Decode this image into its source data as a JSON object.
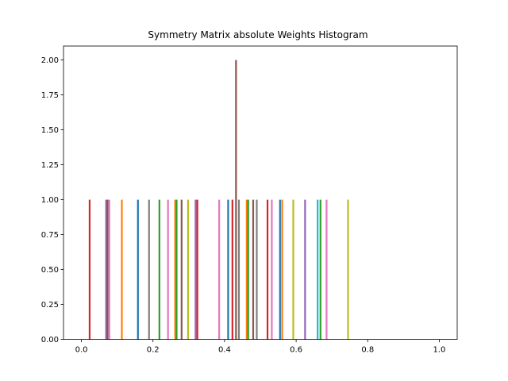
{
  "chart_data": {
    "type": "bar",
    "title": "Symmetry Matrix absolute Weights Histogram",
    "xlabel": "",
    "ylabel": "",
    "xlim": [
      -0.05,
      1.05
    ],
    "ylim": [
      0,
      2.1
    ],
    "x_ticks": [
      "0.0",
      "0.2",
      "0.4",
      "0.6",
      "0.8",
      "1.0"
    ],
    "x_tick_values": [
      0.0,
      0.2,
      0.4,
      0.6,
      0.8,
      1.0
    ],
    "y_ticks": [
      "0.00",
      "0.25",
      "0.50",
      "0.75",
      "1.00",
      "1.25",
      "1.50",
      "1.75",
      "2.00"
    ],
    "y_tick_values": [
      0.0,
      0.25,
      0.5,
      0.75,
      1.0,
      1.25,
      1.5,
      1.75,
      2.0
    ],
    "grid": false,
    "legend": "none",
    "bars": [
      {
        "x": 0.023,
        "value": 1,
        "color": "#d62728"
      },
      {
        "x": 0.069,
        "value": 1,
        "color": "#9467bd"
      },
      {
        "x": 0.073,
        "value": 1,
        "color": "#8c564b"
      },
      {
        "x": 0.078,
        "value": 1,
        "color": "#e377c2"
      },
      {
        "x": 0.113,
        "value": 1,
        "color": "#ff7f0e"
      },
      {
        "x": 0.158,
        "value": 1,
        "color": "#1f77b4"
      },
      {
        "x": 0.189,
        "value": 1,
        "color": "#7f7f7f"
      },
      {
        "x": 0.218,
        "value": 1,
        "color": "#2ca02c"
      },
      {
        "x": 0.242,
        "value": 1,
        "color": "#e377c2"
      },
      {
        "x": 0.262,
        "value": 1,
        "color": "#ff7f0e"
      },
      {
        "x": 0.266,
        "value": 1,
        "color": "#2ca02c"
      },
      {
        "x": 0.28,
        "value": 1,
        "color": "#8c564b"
      },
      {
        "x": 0.298,
        "value": 1,
        "color": "#bcbd22"
      },
      {
        "x": 0.319,
        "value": 1,
        "color": "#9467bd"
      },
      {
        "x": 0.324,
        "value": 1,
        "color": "#d62728"
      },
      {
        "x": 0.385,
        "value": 1,
        "color": "#e377c2"
      },
      {
        "x": 0.41,
        "value": 1,
        "color": "#1f77b4"
      },
      {
        "x": 0.422,
        "value": 1,
        "color": "#d62728"
      },
      {
        "x": 0.432,
        "value": 2,
        "color": "#8c564b"
      },
      {
        "x": 0.44,
        "value": 1,
        "color": "#7f7f7f"
      },
      {
        "x": 0.462,
        "value": 1,
        "color": "#ff7f0e"
      },
      {
        "x": 0.466,
        "value": 1,
        "color": "#2ca02c"
      },
      {
        "x": 0.48,
        "value": 1,
        "color": "#8c564b"
      },
      {
        "x": 0.49,
        "value": 1,
        "color": "#7f7f7f"
      },
      {
        "x": 0.52,
        "value": 1,
        "color": "#d62728"
      },
      {
        "x": 0.532,
        "value": 1,
        "color": "#e377c2"
      },
      {
        "x": 0.555,
        "value": 1,
        "color": "#1f77b4"
      },
      {
        "x": 0.561,
        "value": 1,
        "color": "#ff7f0e"
      },
      {
        "x": 0.592,
        "value": 1,
        "color": "#bcbd22"
      },
      {
        "x": 0.625,
        "value": 1,
        "color": "#9467bd"
      },
      {
        "x": 0.66,
        "value": 1,
        "color": "#17becf"
      },
      {
        "x": 0.668,
        "value": 1,
        "color": "#2ca02c"
      },
      {
        "x": 0.685,
        "value": 1,
        "color": "#e377c2"
      },
      {
        "x": 0.745,
        "value": 1,
        "color": "#bcbd22"
      }
    ]
  }
}
